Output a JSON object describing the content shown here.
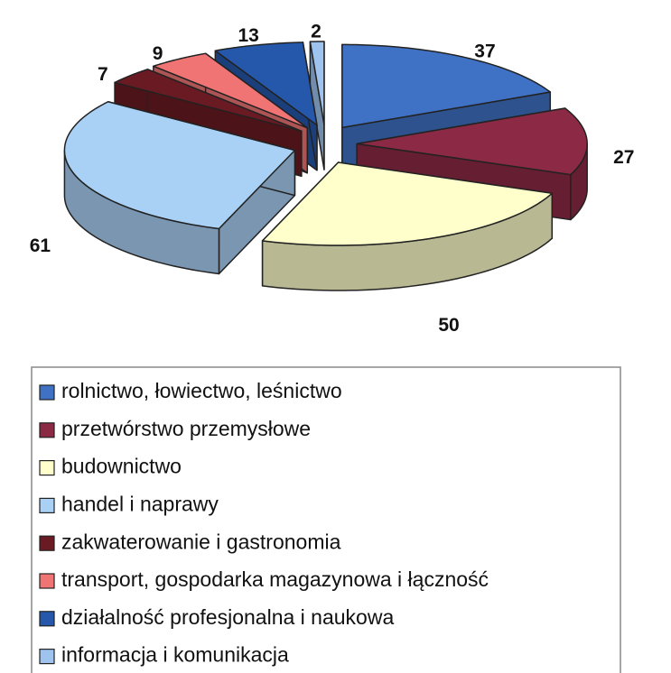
{
  "chart_data": {
    "type": "pie3d",
    "categories": [
      "rolnictwo, łowiectwo, leśnictwo",
      "przetwórstwo przemysłowe",
      "budownictwo",
      "handel i naprawy",
      "zakwaterowanie i gastronomia",
      "transport, gospodarka magazynowa i łączność",
      "działalność profesjonalna i naukowa",
      "informacja i komunikacja"
    ],
    "values": [
      37,
      27,
      50,
      61,
      7,
      9,
      13,
      2
    ],
    "colors": [
      "#3f72c4",
      "#8c2a45",
      "#ffffcc",
      "#a9d1f6",
      "#6a1a22",
      "#f07474",
      "#2558ab",
      "#9fc3ef"
    ],
    "legend": "bottom"
  }
}
